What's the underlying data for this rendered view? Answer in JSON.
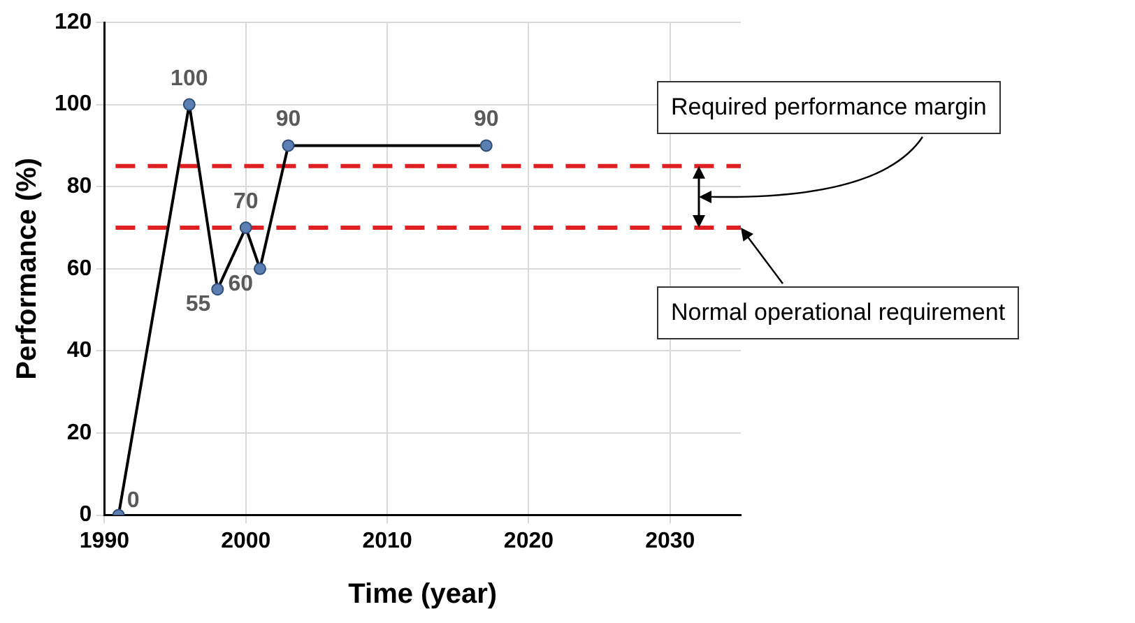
{
  "chart_data": {
    "type": "line",
    "xlabel": "Time (year)",
    "ylabel": "Performance (%)",
    "x": [
      1991,
      1996,
      1998,
      2000,
      2001,
      2003,
      2017
    ],
    "series": [
      {
        "color": "#000000",
        "values": [
          0,
          100,
          55,
          70,
          60,
          90,
          90
        ]
      }
    ],
    "marker": "circle",
    "line_style": "solid",
    "data_labels": true,
    "grid": true,
    "legend": false,
    "xlim": [
      1990,
      2035
    ],
    "xticks": [
      1990,
      2000,
      2010,
      2020,
      2030
    ],
    "ylim": [
      0,
      120
    ],
    "yticks": [
      0,
      20,
      40,
      60,
      80,
      100,
      120
    ],
    "ref_lines": [
      {
        "axis": "y",
        "value": 85,
        "color": "#e02020",
        "line_style": "dashed"
      },
      {
        "axis": "y",
        "value": 70,
        "color": "#e02020",
        "line_style": "dashed"
      }
    ],
    "annotations": [
      "Required performance margin",
      {
        "text": "Normal operational requirement",
        "x": 2035,
        "y": 70
      }
    ]
  }
}
